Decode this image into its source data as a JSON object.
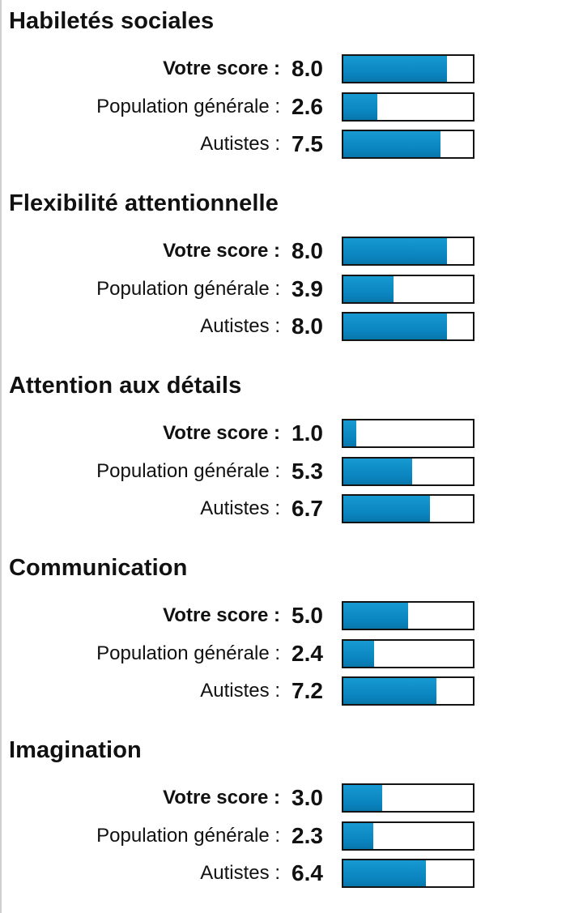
{
  "scale_max": 10,
  "colors": {
    "bar_fill": "#0a84bf",
    "bar_border": "#141414",
    "text": "#111111"
  },
  "sections": [
    {
      "title": "Habiletés sociales",
      "rows": [
        {
          "label": "Votre score :",
          "value": "8.0",
          "fraction": 0.8,
          "highlight": true
        },
        {
          "label": "Population générale :",
          "value": "2.6",
          "fraction": 0.26,
          "highlight": false
        },
        {
          "label": "Autistes :",
          "value": "7.5",
          "fraction": 0.75,
          "highlight": false
        }
      ]
    },
    {
      "title": "Flexibilité attentionnelle",
      "rows": [
        {
          "label": "Votre score :",
          "value": "8.0",
          "fraction": 0.8,
          "highlight": true
        },
        {
          "label": "Population générale :",
          "value": "3.9",
          "fraction": 0.39,
          "highlight": false
        },
        {
          "label": "Autistes :",
          "value": "8.0",
          "fraction": 0.8,
          "highlight": false
        }
      ]
    },
    {
      "title": "Attention aux détails",
      "rows": [
        {
          "label": "Votre score :",
          "value": "1.0",
          "fraction": 0.1,
          "highlight": true
        },
        {
          "label": "Population générale :",
          "value": "5.3",
          "fraction": 0.53,
          "highlight": false
        },
        {
          "label": "Autistes :",
          "value": "6.7",
          "fraction": 0.67,
          "highlight": false
        }
      ]
    },
    {
      "title": "Communication",
      "rows": [
        {
          "label": "Votre score :",
          "value": "5.0",
          "fraction": 0.5,
          "highlight": true
        },
        {
          "label": "Population générale :",
          "value": "2.4",
          "fraction": 0.24,
          "highlight": false
        },
        {
          "label": "Autistes :",
          "value": "7.2",
          "fraction": 0.72,
          "highlight": false
        }
      ]
    },
    {
      "title": "Imagination",
      "rows": [
        {
          "label": "Votre score :",
          "value": "3.0",
          "fraction": 0.3,
          "highlight": true
        },
        {
          "label": "Population générale :",
          "value": "2.3",
          "fraction": 0.23,
          "highlight": false
        },
        {
          "label": "Autistes :",
          "value": "6.4",
          "fraction": 0.64,
          "highlight": false
        }
      ]
    }
  ]
}
